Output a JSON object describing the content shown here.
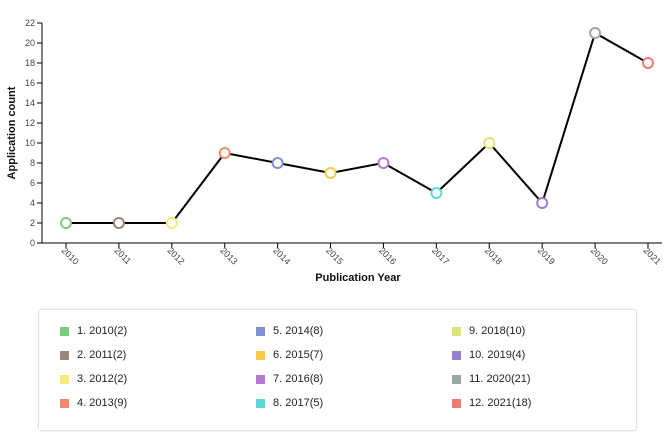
{
  "chart_data": {
    "type": "line",
    "xlabel": "Publication Year",
    "ylabel": "Application count",
    "ylim": [
      0,
      22
    ],
    "yticks": [
      0,
      2,
      4,
      6,
      8,
      10,
      12,
      14,
      16,
      18,
      20,
      22
    ],
    "categories": [
      "2010",
      "2011",
      "2012",
      "2013",
      "2014",
      "2015",
      "2016",
      "2017",
      "2018",
      "2019",
      "2020",
      "2021"
    ],
    "series": [
      {
        "values": [
          2,
          2,
          2,
          9,
          8,
          7,
          8,
          5,
          10,
          4,
          21,
          18
        ]
      }
    ],
    "point_colors": [
      "#7dcc7d",
      "#9a857a",
      "#f6eb7a",
      "#f08a6a",
      "#7f8fd0",
      "#f7c94e",
      "#b57ad0",
      "#5fd6dc",
      "#dfe27a",
      "#9a7fd0",
      "#97aaa8",
      "#f07a72"
    ],
    "line_color": "#000000",
    "legend": [
      {
        "label": "1. 2010(2)",
        "color": "#7dcc7d"
      },
      {
        "label": "2. 2011(2)",
        "color": "#9a857a"
      },
      {
        "label": "3. 2012(2)",
        "color": "#f6eb7a"
      },
      {
        "label": "4. 2013(9)",
        "color": "#f08a6a"
      },
      {
        "label": "5. 2014(8)",
        "color": "#7f8fd0"
      },
      {
        "label": "6. 2015(7)",
        "color": "#f7c94e"
      },
      {
        "label": "7. 2016(8)",
        "color": "#b57ad0"
      },
      {
        "label": "8. 2017(5)",
        "color": "#5fd6dc"
      },
      {
        "label": "9. 2018(10)",
        "color": "#dfe27a"
      },
      {
        "label": "10. 2019(4)",
        "color": "#9a7fd0"
      },
      {
        "label": "11. 2020(21)",
        "color": "#97aaa8"
      },
      {
        "label": "12. 2021(18)",
        "color": "#f07a72"
      }
    ],
    "legend_position": "bottom",
    "grid": false
  }
}
